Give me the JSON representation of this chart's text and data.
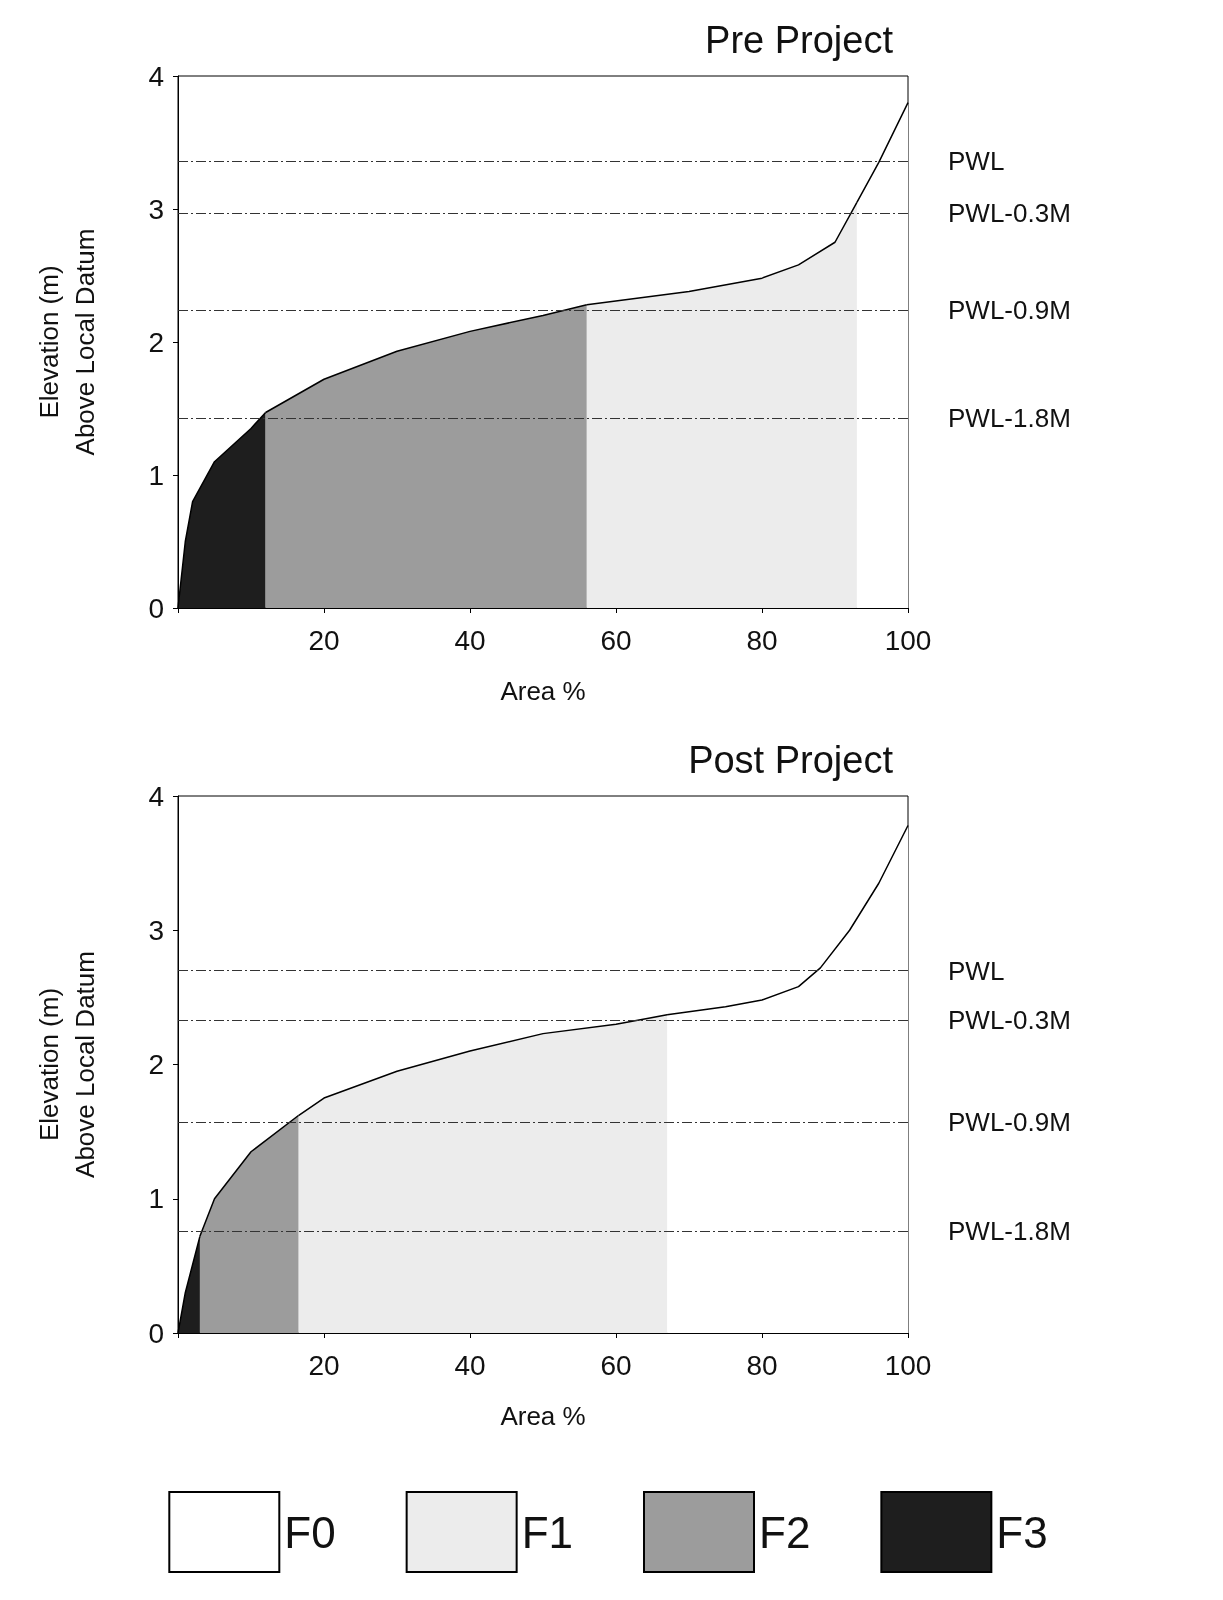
{
  "chart_data": [
    {
      "type": "area",
      "title": "Pre Project",
      "xlabel": "Area %",
      "ylabel": "Elevation (m)\nAbove Local Datum",
      "xlim": [
        0,
        100
      ],
      "ylim": [
        0,
        4
      ],
      "xticks": [
        {
          "value": 0,
          "label": null
        },
        20,
        40,
        60,
        80,
        100
      ],
      "yticks": [
        0,
        1,
        2,
        3,
        4
      ],
      "series": [
        {
          "color": "#1e1e1e",
          "x": [
            0,
            1,
            2,
            5,
            10,
            12
          ],
          "values": [
            0,
            0.5,
            0.8,
            1.1,
            1.35,
            1.47
          ]
        },
        {
          "color": "#9c9c9c",
          "x": [
            12,
            20,
            30,
            40,
            50,
            56
          ],
          "values": [
            1.47,
            1.72,
            1.93,
            2.08,
            2.2,
            2.28
          ]
        },
        {
          "color": "#ececec",
          "x": [
            56,
            70,
            80,
            85,
            90,
            93
          ],
          "values": [
            2.28,
            2.38,
            2.48,
            2.58,
            2.75,
            3.05
          ]
        },
        {
          "color": "#ffffff",
          "x": [
            93,
            96,
            100
          ],
          "values": [
            3.05,
            3.35,
            3.8
          ]
        }
      ],
      "ref_lines": [
        {
          "axis": "y",
          "value": 3.36,
          "label": "PWL",
          "line_style": "dashed"
        },
        {
          "axis": "y",
          "value": 2.97,
          "label": "PWL-0.3M",
          "line_style": "dashed"
        },
        {
          "axis": "y",
          "value": 2.24,
          "label": "PWL-0.9M",
          "line_style": "dashed"
        },
        {
          "axis": "y",
          "value": 1.43,
          "label": "PWL-1.8M",
          "line_style": "dashed"
        }
      ]
    },
    {
      "type": "area",
      "title": "Post Project",
      "xlabel": "Area %",
      "ylabel": "Elevation (m)\nAbove Local Datum",
      "xlim": [
        0,
        100
      ],
      "ylim": [
        0,
        4
      ],
      "xticks": [
        {
          "value": 0,
          "label": null
        },
        20,
        40,
        60,
        80,
        100
      ],
      "yticks": [
        0,
        1,
        2,
        3,
        4
      ],
      "legend": "bottom",
      "series": [
        {
          "name": "F0",
          "color": "#ffffff",
          "x": [
            67,
            75,
            80,
            85,
            88,
            92,
            96,
            100
          ],
          "values": [
            2.37,
            2.43,
            2.48,
            2.58,
            2.72,
            3.0,
            3.35,
            3.78
          ]
        },
        {
          "name": "F1",
          "color": "#ececec",
          "x": [
            16.5,
            20,
            30,
            40,
            50,
            60,
            67
          ],
          "values": [
            1.62,
            1.75,
            1.95,
            2.1,
            2.23,
            2.3,
            2.37
          ]
        },
        {
          "name": "F2",
          "color": "#9c9c9c",
          "x": [
            3,
            5,
            10,
            16.5
          ],
          "values": [
            0.72,
            1.0,
            1.35,
            1.62
          ]
        },
        {
          "name": "F3",
          "color": "#1e1e1e",
          "x": [
            0,
            1,
            3
          ],
          "values": [
            0,
            0.3,
            0.72
          ]
        }
      ],
      "ref_lines": [
        {
          "axis": "y",
          "value": 2.7,
          "label": "PWL",
          "line_style": "dashed"
        },
        {
          "axis": "y",
          "value": 2.33,
          "label": "PWL-0.3M",
          "line_style": "dashed"
        },
        {
          "axis": "y",
          "value": 1.57,
          "label": "PWL-0.9M",
          "line_style": "dashed"
        },
        {
          "axis": "y",
          "value": 0.76,
          "label": "PWL-1.8M",
          "line_style": "dashed"
        }
      ]
    }
  ]
}
